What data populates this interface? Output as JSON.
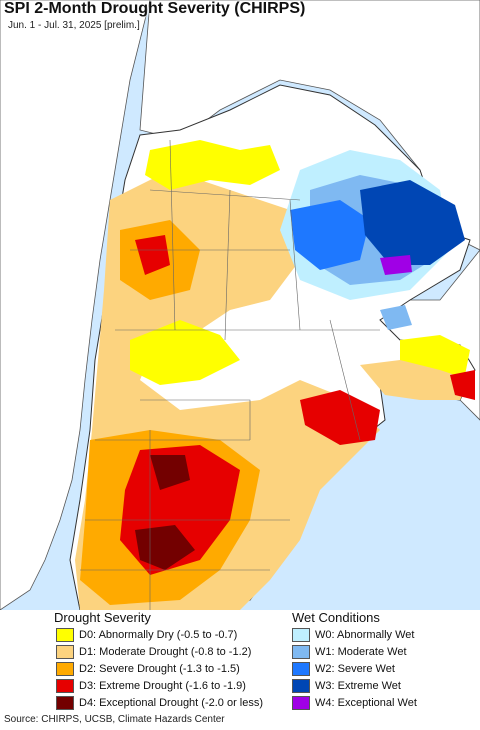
{
  "header": {
    "title": "SPI 2-Month Drought Severity (CHIRPS)",
    "subtitle": "Jun. 1 - Jul. 31, 2025 [prelim.]"
  },
  "legend": {
    "drought_heading": "Drought Severity",
    "wet_heading": "Wet Conditions",
    "drought_items": [
      {
        "label": "D0: Abnormally Dry (-0.5 to -0.7)",
        "color": "#ffff00"
      },
      {
        "label": "D1: Moderate Drought (-0.8 to -1.2)",
        "color": "#fcd37f"
      },
      {
        "label": "D2: Severe Drought (-1.3 to -1.5)",
        "color": "#ffaa00"
      },
      {
        "label": "D3: Extreme Drought (-1.6 to -1.9)",
        "color": "#e60000"
      },
      {
        "label": "D4: Exceptional Drought (-2.0 or less)",
        "color": "#730000"
      }
    ],
    "wet_items": [
      {
        "label": "W0: Abnormally Wet",
        "color": "#bfefff"
      },
      {
        "label": "W1: Moderate Wet",
        "color": "#7fb9f2"
      },
      {
        "label": "W2: Severe Wet",
        "color": "#1e78ff"
      },
      {
        "label": "W3: Extreme Wet",
        "color": "#0046b4"
      },
      {
        "label": "W4: Exceptional Wet",
        "color": "#a000e6"
      }
    ]
  },
  "footer": {
    "source": "Source: CHIRPS, UCSB, Climate Hazards Center"
  }
}
